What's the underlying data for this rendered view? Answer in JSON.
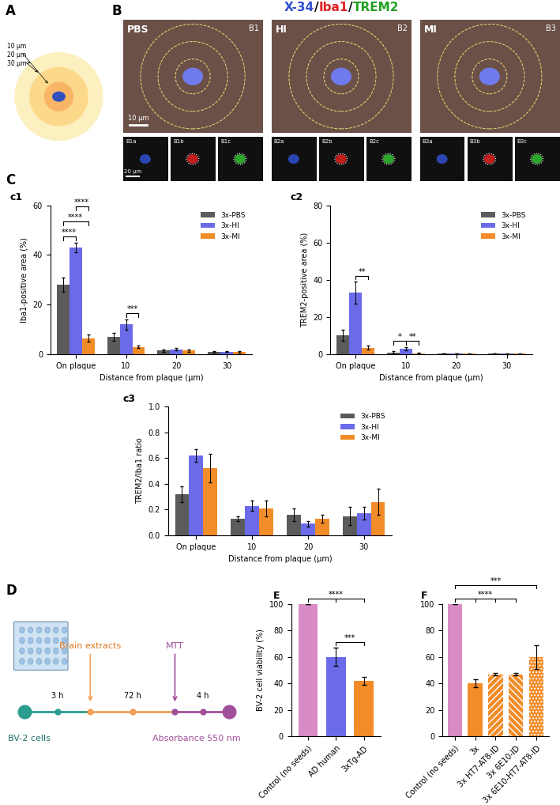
{
  "panel_labels": [
    "A",
    "B",
    "C",
    "D"
  ],
  "diagram_A": {
    "rings": [
      "10 µm",
      "20 µm",
      "30 µm"
    ]
  },
  "panel_B": {
    "title_parts": [
      {
        "text": "X-34",
        "color": "#3050d0"
      },
      {
        "text": "/",
        "color": "#000000"
      },
      {
        "text": "Iba1",
        "color": "#e02020"
      },
      {
        "text": "/",
        "color": "#000000"
      },
      {
        "text": "TREM2",
        "color": "#20a020"
      }
    ],
    "images": [
      {
        "name": "PBS",
        "id": "B1",
        "subs": [
          "B1a",
          "B1b",
          "B1c"
        ]
      },
      {
        "name": "HI",
        "id": "B2",
        "subs": [
          "B2a",
          "B2b",
          "B2c"
        ]
      },
      {
        "name": "MI",
        "id": "B3",
        "subs": [
          "B3a",
          "B3b",
          "B3c"
        ]
      }
    ],
    "scale_bars": [
      "10 µm",
      "20 µm"
    ]
  },
  "chart_data": [
    {
      "panel": "c1",
      "type": "bar",
      "y_label": "Iba1-positive area (%)",
      "x_label": "Distance from plaque (µm)",
      "categories": [
        "On plaque",
        "10",
        "20",
        "30"
      ],
      "ylim": [
        0,
        60
      ],
      "yticks": [
        0,
        20,
        40,
        60
      ],
      "legend": "upper right",
      "series": [
        {
          "name": "3x-PBS",
          "color": "#5b5b5b",
          "values": [
            28,
            7,
            1.5,
            1
          ],
          "errors": [
            3,
            1.5,
            0.5,
            0.3
          ]
        },
        {
          "name": "3x-HI",
          "color": "#6b6bea",
          "values": [
            43,
            12,
            2,
            1
          ],
          "errors": [
            2,
            2,
            0.5,
            0.2
          ]
        },
        {
          "name": "3x-MI",
          "color": "#f28c28",
          "values": [
            6.5,
            3,
            1.5,
            1
          ],
          "errors": [
            1.5,
            0.5,
            0.5,
            0.3
          ]
        }
      ],
      "significance": [
        {
          "category": 0,
          "from": "3x-PBS",
          "to": "3x-HI",
          "label": "****"
        },
        {
          "category": 0,
          "from": "3x-PBS",
          "to": "3x-MI",
          "label": "****"
        },
        {
          "category": 0,
          "from": "3x-HI",
          "to": "3x-MI",
          "label": "****"
        },
        {
          "category": 1,
          "from": "3x-HI",
          "to": "3x-MI",
          "label": "***"
        }
      ]
    },
    {
      "panel": "c2",
      "type": "bar",
      "y_label": "TREM2-positive area (%)",
      "x_label": "Distance from plaque (µm)",
      "categories": [
        "On plaque",
        "10",
        "20",
        "30"
      ],
      "ylim": [
        0,
        80
      ],
      "yticks": [
        0,
        20,
        40,
        60,
        80
      ],
      "legend": "upper right",
      "series": [
        {
          "name": "3x-PBS",
          "color": "#5b5b5b",
          "values": [
            10,
            1,
            0.3,
            0.3
          ],
          "errors": [
            3,
            0.5,
            0.1,
            0.1
          ]
        },
        {
          "name": "3x-HI",
          "color": "#6b6bea",
          "values": [
            33,
            3,
            0.3,
            0.2
          ],
          "errors": [
            6,
            1,
            0.1,
            0.1
          ]
        },
        {
          "name": "3x-MI",
          "color": "#f28c28",
          "values": [
            3.5,
            0.5,
            0.2,
            0.2
          ],
          "errors": [
            1,
            0.3,
            0.1,
            0.1
          ]
        }
      ],
      "significance": [
        {
          "category": 0,
          "from": "3x-HI",
          "to": "3x-MI",
          "label": "**"
        },
        {
          "category": 1,
          "from": "3x-PBS",
          "to": "3x-HI",
          "label": "*"
        },
        {
          "category": 1,
          "from": "3x-HI",
          "to": "3x-MI",
          "label": "**"
        }
      ]
    },
    {
      "panel": "c3",
      "type": "bar",
      "y_label": "TREM2/Iba1 ratio",
      "x_label": "Distance from plaque (µm)",
      "categories": [
        "On plaque",
        "10",
        "20",
        "30"
      ],
      "ylim": [
        0.0,
        1.0
      ],
      "yticks": [
        0.0,
        0.2,
        0.4,
        0.6,
        0.8,
        1.0
      ],
      "legend": "upper right",
      "series": [
        {
          "name": "3x-PBS",
          "color": "#5b5b5b",
          "values": [
            0.32,
            0.13,
            0.16,
            0.15
          ],
          "errors": [
            0.06,
            0.02,
            0.05,
            0.07
          ]
        },
        {
          "name": "3x-HI",
          "color": "#6b6bea",
          "values": [
            0.62,
            0.23,
            0.09,
            0.17
          ],
          "errors": [
            0.05,
            0.04,
            0.02,
            0.05
          ]
        },
        {
          "name": "3x-MI",
          "color": "#f28c28",
          "values": [
            0.52,
            0.21,
            0.13,
            0.26
          ],
          "errors": [
            0.11,
            0.06,
            0.03,
            0.1
          ]
        }
      ],
      "significance": []
    },
    {
      "panel": "E",
      "type": "bar",
      "y_label": "BV-2 cell viability (%)",
      "categories": [
        "Control (no seeds)",
        "AD human",
        "3xTg-AD"
      ],
      "values": [
        100,
        60,
        42
      ],
      "errors": [
        0,
        7,
        3
      ],
      "colors": [
        "#d98bc6",
        "#6b6bea",
        "#f28c28"
      ],
      "ylim": [
        0,
        100
      ],
      "yticks": [
        0,
        20,
        40,
        60,
        80,
        100
      ],
      "significance": [
        {
          "from": 1,
          "to": [
            2
          ],
          "label": "***"
        },
        {
          "from": 0,
          "to": [
            1,
            2
          ],
          "label": "****"
        }
      ]
    },
    {
      "panel": "F",
      "type": "bar",
      "categories": [
        "Control (no seeds)",
        "3x",
        "3x HT7-AT8-ID",
        "3x 6E10-ID",
        "3x 6E10-HT7-AT8-ID"
      ],
      "values": [
        100,
        40,
        47,
        47,
        60
      ],
      "errors": [
        0,
        3,
        1,
        1,
        9
      ],
      "colors": [
        "#d98bc6",
        "#f28c28",
        "#f28c28",
        "#f28c28",
        "#f28c28"
      ],
      "ylim": [
        0,
        100
      ],
      "yticks": [
        0,
        20,
        40,
        60,
        80,
        100
      ],
      "significance": [
        {
          "from": 0,
          "to": [
            1,
            2,
            3
          ],
          "label": "****"
        },
        {
          "from": 0,
          "to": [
            4
          ],
          "label": "***"
        }
      ]
    }
  ],
  "panel_D": {
    "steps": [
      "BV-2 cells",
      "Brain extracts",
      "MTT",
      "Absorbance 550 nm"
    ],
    "intervals": [
      "3 h",
      "72 h",
      "4 h"
    ]
  }
}
